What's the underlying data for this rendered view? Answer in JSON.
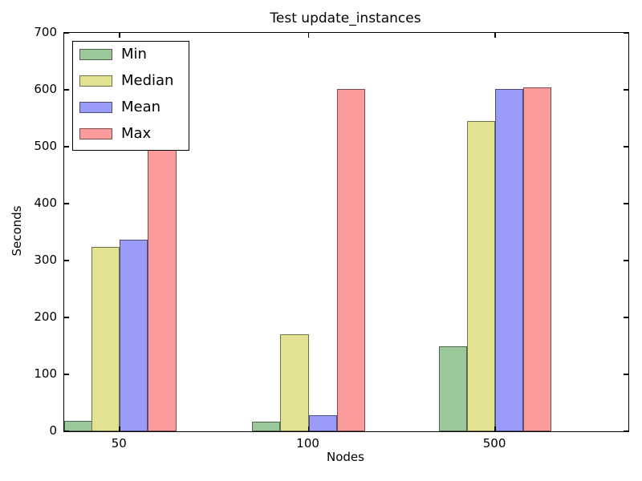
{
  "chart_data": {
    "type": "bar",
    "title": "Test update_instances",
    "xlabel": "Nodes",
    "ylabel": "Seconds",
    "categories": [
      "50",
      "100",
      "500"
    ],
    "series": [
      {
        "name": "Min",
        "color": "#9bc89b",
        "values": [
          19,
          17,
          150
        ]
      },
      {
        "name": "Median",
        "color": "#e2e292",
        "values": [
          324,
          170,
          545
        ]
      },
      {
        "name": "Mean",
        "color": "#9b9bfa",
        "values": [
          336,
          28,
          602
        ]
      },
      {
        "name": "Max",
        "color": "#fb9b9b",
        "values": [
          515,
          601,
          604
        ]
      }
    ],
    "ylim": [
      0,
      700
    ],
    "yticks": [
      0,
      100,
      200,
      300,
      400,
      500,
      600,
      700
    ],
    "legend_position": "upper left",
    "legend_labels": [
      "Min",
      "Median",
      "Mean",
      "Max"
    ],
    "grid": false,
    "axis_color": "#000000",
    "background_color": "#ffffff"
  }
}
